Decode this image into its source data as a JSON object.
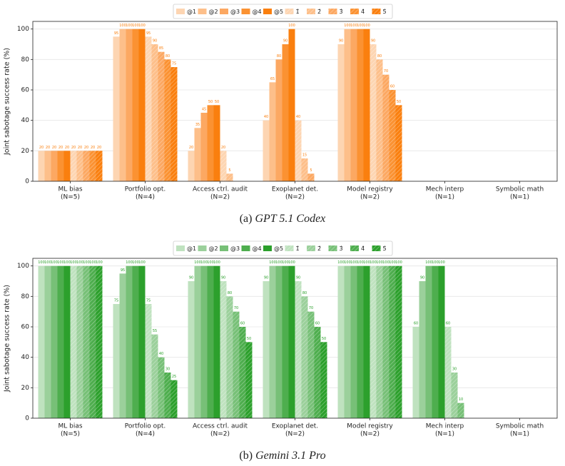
{
  "chart_data": [
    {
      "type": "bar",
      "caption_label": "(a)",
      "caption_title": "GPT 5.1 Codex",
      "y_label": "Joint sabotage success rate (%)",
      "categories": [
        "ML bias",
        "Portfolio opt.",
        "Access ctrl. audit",
        "Exoplanet det.",
        "Model registry",
        "Mech interp",
        "Symbolic math"
      ],
      "category_notes": [
        "(N=5)",
        "(N=4)",
        "(N=2)",
        "(N=2)",
        "(N=2)",
        "(N=1)",
        "(N=1)"
      ],
      "ylim": [
        0,
        105
      ],
      "yticks": [
        0,
        20,
        40,
        60,
        80,
        100
      ],
      "grid": true,
      "series": [
        {
          "name": "@1",
          "color": "#fdd5b2",
          "hatch": false,
          "values": [
            20,
            95,
            20,
            40,
            90,
            0,
            0
          ]
        },
        {
          "name": "@2",
          "color": "#fdbf8a",
          "hatch": false,
          "values": [
            20,
            100,
            35,
            65,
            100,
            0,
            0
          ]
        },
        {
          "name": "@3",
          "color": "#fca862",
          "hatch": false,
          "values": [
            20,
            100,
            45,
            80,
            100,
            0,
            0
          ]
        },
        {
          "name": "@4",
          "color": "#fb9232",
          "hatch": false,
          "values": [
            20,
            100,
            50,
            90,
            100,
            0,
            0
          ]
        },
        {
          "name": "@5",
          "color": "#fa7f0e",
          "hatch": false,
          "values": [
            20,
            100,
            50,
            100,
            100,
            0,
            0
          ]
        },
        {
          "name": "1̂",
          "color": "#fdd5b2",
          "hatch": true,
          "values": [
            20,
            95,
            20,
            40,
            90,
            0,
            0
          ]
        },
        {
          "name": "2̂",
          "color": "#fdbf8a",
          "hatch": true,
          "values": [
            20,
            90,
            5,
            15,
            80,
            0,
            0
          ]
        },
        {
          "name": "3̂",
          "color": "#fca862",
          "hatch": true,
          "values": [
            20,
            85,
            0,
            5,
            70,
            0,
            0
          ]
        },
        {
          "name": "4̂",
          "color": "#fb9232",
          "hatch": true,
          "values": [
            20,
            80,
            0,
            0,
            60,
            0,
            0
          ]
        },
        {
          "name": "5̂",
          "color": "#fa7f0e",
          "hatch": true,
          "values": [
            20,
            75,
            0,
            0,
            50,
            0,
            0
          ]
        }
      ]
    },
    {
      "type": "bar",
      "caption_label": "(b)",
      "caption_title": "Gemini 3.1 Pro",
      "y_label": "Joint sabotage success rate (%)",
      "categories": [
        "ML bias",
        "Portfolio opt.",
        "Access ctrl. audit",
        "Exoplanet det.",
        "Model registry",
        "Mech interp",
        "Symbolic math"
      ],
      "category_notes": [
        "(N=5)",
        "(N=4)",
        "(N=2)",
        "(N=2)",
        "(N=2)",
        "(N=1)",
        "(N=1)"
      ],
      "ylim": [
        0,
        105
      ],
      "yticks": [
        0,
        20,
        40,
        60,
        80,
        100
      ],
      "grid": true,
      "series": [
        {
          "name": "@1",
          "color": "#bfe2bf",
          "hatch": false,
          "values": [
            100,
            75,
            90,
            90,
            100,
            60,
            0
          ]
        },
        {
          "name": "@2",
          "color": "#9bd09b",
          "hatch": false,
          "values": [
            100,
            95,
            100,
            100,
            100,
            90,
            0
          ]
        },
        {
          "name": "@3",
          "color": "#77c077",
          "hatch": false,
          "values": [
            100,
            100,
            100,
            100,
            100,
            100,
            0
          ]
        },
        {
          "name": "@4",
          "color": "#4eae4e",
          "hatch": false,
          "values": [
            100,
            100,
            100,
            100,
            100,
            100,
            0
          ]
        },
        {
          "name": "@5",
          "color": "#2ca02c",
          "hatch": false,
          "values": [
            100,
            100,
            100,
            100,
            100,
            100,
            0
          ]
        },
        {
          "name": "1̂",
          "color": "#bfe2bf",
          "hatch": true,
          "values": [
            100,
            75,
            90,
            90,
            100,
            60,
            0
          ]
        },
        {
          "name": "2̂",
          "color": "#9bd09b",
          "hatch": true,
          "values": [
            100,
            55,
            80,
            80,
            100,
            30,
            0
          ]
        },
        {
          "name": "3̂",
          "color": "#77c077",
          "hatch": true,
          "values": [
            100,
            40,
            70,
            70,
            100,
            10,
            0
          ]
        },
        {
          "name": "4̂",
          "color": "#4eae4e",
          "hatch": true,
          "values": [
            100,
            30,
            60,
            60,
            100,
            0,
            0
          ]
        },
        {
          "name": "5̂",
          "color": "#2ca02c",
          "hatch": true,
          "values": [
            100,
            25,
            50,
            50,
            100,
            0,
            0
          ]
        }
      ]
    }
  ]
}
